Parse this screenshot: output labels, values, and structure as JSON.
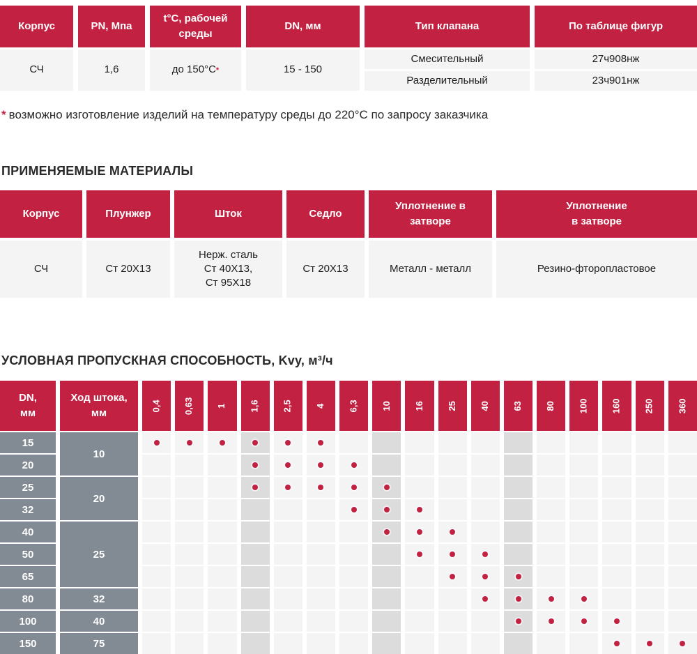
{
  "colors": {
    "accent": "#c22142",
    "dark_gray": "#828b93",
    "cell_bg": "#f4f4f4",
    "cell_shaded": "#dcdcdc"
  },
  "spec_table": {
    "headers": [
      "Корпус",
      "PN, Мпа",
      "t°С, рабочей\nсреды",
      "DN, мм",
      "Тип клапана",
      "По таблице фигур"
    ],
    "body_value": "СЧ",
    "pn_value": "1,6",
    "temp_value": "до 150°С",
    "temp_note": "*",
    "dn_value": "15 - 150",
    "valve_rows": [
      {
        "type": "Смесительный",
        "figure": "27ч908нж"
      },
      {
        "type": "Разделительный",
        "figure": "23ч901нж"
      }
    ]
  },
  "footnote": {
    "marker": "*",
    "text": "возможно изготовление изделий на температуру среды до 220°С по запросу заказчика"
  },
  "materials": {
    "heading": "ПРИМЕНЯЕМЫЕ МАТЕРИАЛЫ",
    "headers": [
      "Корпус",
      "Плунжер",
      "Шток",
      "Седло",
      "Уплотнение в\nзатворе",
      "Уплотнение\nв затворе"
    ],
    "row": [
      "СЧ",
      "Ст 20Х13",
      "Нерж. сталь\nСт 40Х13,\nСт 95Х18",
      "Ст 20Х13",
      "Металл - металл",
      "Резино-фторопластовое"
    ]
  },
  "kv_table": {
    "heading": "УСЛОВНАЯ ПРОПУСКНАЯ СПОСОБНОСТЬ, Kvу, м³/ч",
    "dn_header": "DN,\nмм",
    "stroke_header": "Ход штока,\nмм",
    "columns": [
      "0,4",
      "0,63",
      "1",
      "1,6",
      "2,5",
      "4",
      "6,3",
      "10",
      "16",
      "25",
      "40",
      "63",
      "80",
      "100",
      "160",
      "250",
      "360"
    ],
    "shaded_columns": [
      "1,6",
      "10",
      "63"
    ],
    "rows": [
      {
        "dn": "15",
        "stroke": "10",
        "stroke_span": 2,
        "dots": [
          "0,4",
          "0,63",
          "1",
          "1,6",
          "2,5",
          "4"
        ]
      },
      {
        "dn": "20",
        "dots": [
          "1,6",
          "2,5",
          "4",
          "6,3"
        ]
      },
      {
        "dn": "25",
        "stroke": "20",
        "stroke_span": 2,
        "dots": [
          "1,6",
          "2,5",
          "4",
          "6,3",
          "10"
        ]
      },
      {
        "dn": "32",
        "dots": [
          "6,3",
          "10",
          "16"
        ]
      },
      {
        "dn": "40",
        "stroke": "25",
        "stroke_span": 3,
        "dots": [
          "10",
          "16",
          "25"
        ]
      },
      {
        "dn": "50",
        "dots": [
          "16",
          "25",
          "40"
        ]
      },
      {
        "dn": "65",
        "dots": [
          "25",
          "40",
          "63"
        ]
      },
      {
        "dn": "80",
        "stroke": "32",
        "stroke_span": 1,
        "dots": [
          "40",
          "63",
          "80",
          "100"
        ]
      },
      {
        "dn": "100",
        "stroke": "40",
        "stroke_span": 1,
        "dots": [
          "63",
          "80",
          "100",
          "160"
        ]
      },
      {
        "dn": "150",
        "stroke": "75",
        "stroke_span": 1,
        "dots": [
          "160",
          "250",
          "360"
        ]
      }
    ]
  }
}
